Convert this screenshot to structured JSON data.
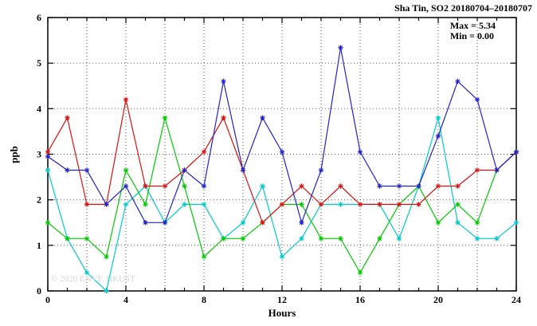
{
  "title": "Sha Tin, SO2 20180704–20180707",
  "annotation": {
    "max": "Max = 5.34",
    "min": "Min = 0.00"
  },
  "watermark": "© 2020 ENVF, HKUST",
  "chart_data": {
    "type": "line",
    "title": "Sha Tin, SO2 20180704–20180707",
    "xlabel": "Hours",
    "ylabel": "ppb",
    "xlim": [
      0,
      24
    ],
    "ylim": [
      0,
      6
    ],
    "xticks": [
      0,
      4,
      8,
      12,
      16,
      20,
      24
    ],
    "xticks_minor": [
      1,
      2,
      3,
      5,
      6,
      7,
      9,
      10,
      11,
      13,
      14,
      15,
      17,
      18,
      19,
      21,
      22,
      23
    ],
    "yticks": [
      0,
      1,
      2,
      3,
      4,
      5,
      6
    ],
    "xgrid": [
      2,
      4,
      6,
      8,
      10,
      12,
      14,
      16,
      18,
      20,
      22
    ],
    "ygrid": [
      1,
      2,
      3,
      4,
      5
    ],
    "grid": true,
    "legend": "none",
    "marker": "asterisk",
    "annotations": [
      "Max = 5.34",
      "Min = 0.00"
    ],
    "x": [
      0,
      1,
      2,
      3,
      4,
      5,
      6,
      7,
      8,
      9,
      10,
      11,
      12,
      13,
      14,
      15,
      16,
      17,
      18,
      19,
      20,
      21,
      22,
      23,
      24
    ],
    "series": [
      {
        "name": "cyan",
        "color": "#00cccc",
        "values": [
          2.65,
          1.15,
          0.4,
          0.0,
          1.9,
          2.3,
          1.5,
          1.9,
          1.9,
          1.15,
          1.5,
          2.3,
          0.75,
          1.15,
          1.9,
          1.9,
          1.9,
          1.9,
          1.15,
          2.3,
          3.8,
          1.5,
          1.15,
          1.15,
          1.5
        ]
      },
      {
        "name": "green",
        "color": "#00cc00",
        "values": [
          1.5,
          1.15,
          1.15,
          0.75,
          2.65,
          1.9,
          3.8,
          2.3,
          0.75,
          1.15,
          1.15,
          1.5,
          1.9,
          1.9,
          1.15,
          1.15,
          0.4,
          1.15,
          1.9,
          2.3,
          1.5,
          1.9,
          1.5,
          2.65,
          3.05
        ]
      },
      {
        "name": "red",
        "color": "#e01010",
        "values": [
          3.05,
          3.8,
          1.9,
          1.9,
          4.2,
          2.3,
          2.3,
          2.65,
          3.05,
          3.8,
          2.65,
          1.5,
          1.9,
          2.3,
          1.9,
          2.3,
          1.9,
          1.9,
          1.9,
          1.9,
          2.3,
          2.3,
          2.65,
          2.65,
          3.05
        ]
      },
      {
        "name": "blue",
        "color": "#2222cc",
        "values": [
          2.95,
          2.65,
          2.65,
          1.9,
          2.3,
          1.5,
          1.5,
          2.65,
          2.3,
          4.6,
          2.65,
          3.8,
          3.05,
          1.5,
          2.65,
          5.34,
          3.05,
          2.3,
          2.3,
          2.3,
          3.4,
          4.6,
          4.2,
          2.65,
          3.05
        ]
      }
    ]
  }
}
